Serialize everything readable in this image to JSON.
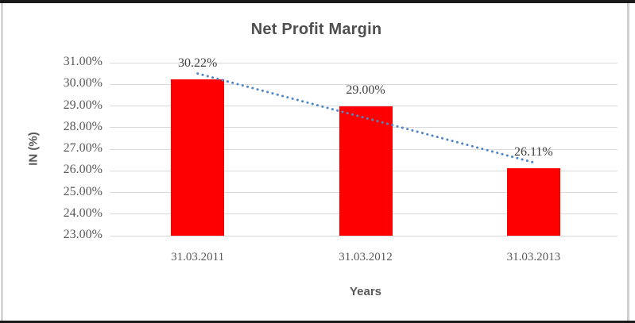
{
  "chart_data": {
    "type": "bar",
    "title": "Net Profit Margin",
    "xlabel": "Years",
    "ylabel": "IN (%)",
    "categories": [
      "31.03.2011",
      "31.03.2012",
      "31.03.2013"
    ],
    "values": [
      30.22,
      29.0,
      26.11
    ],
    "data_labels": [
      "30.22%",
      "29.00%",
      "26.11%"
    ],
    "ylim": [
      23,
      31
    ],
    "ytick_step": 1,
    "ytick_labels": [
      "31.00%",
      "30.00%",
      "29.00%",
      "28.00%",
      "27.00%",
      "26.00%",
      "25.00%",
      "24.00%",
      "23.00%"
    ],
    "grid": true,
    "legend": "none",
    "trendline": {
      "type": "linear",
      "style": "dotted"
    },
    "colors": {
      "bar": "#ff0000",
      "text": "#595959",
      "gridline": "#d9d9d9",
      "trendline": "#4f86c6"
    }
  }
}
